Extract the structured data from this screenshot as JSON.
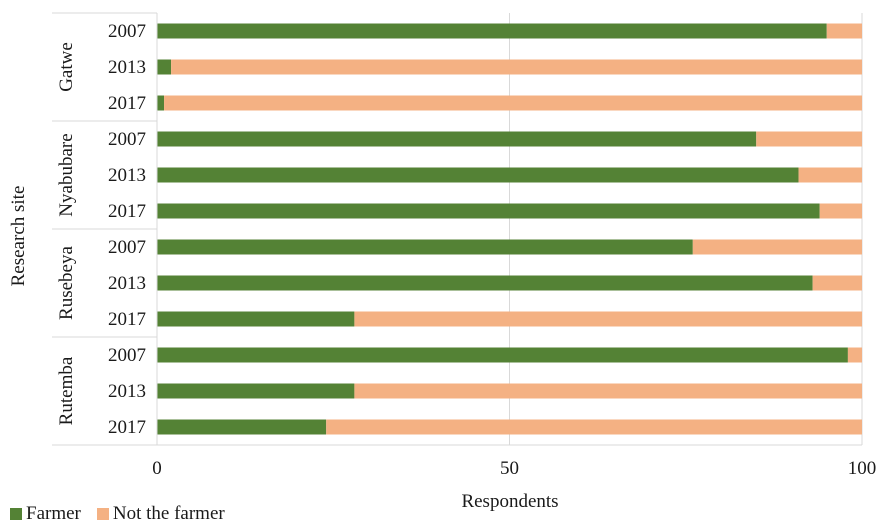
{
  "chart_data": {
    "type": "bar",
    "orientation": "horizontal",
    "stacked": true,
    "xlabel": "Respondents",
    "ylabel": "Research site",
    "xlim": [
      0,
      100
    ],
    "xticks": [
      "0",
      "50",
      "100"
    ],
    "groups": [
      {
        "name": "Gatwe",
        "years": [
          "2007",
          "2013",
          "2017"
        ]
      },
      {
        "name": "Nyabubare",
        "years": [
          "2007",
          "2013",
          "2017"
        ]
      },
      {
        "name": "Rusebeya",
        "years": [
          "2007",
          "2013",
          "2017"
        ]
      },
      {
        "name": "Rutemba",
        "years": [
          "2007",
          "2013",
          "2017"
        ]
      }
    ],
    "series": [
      {
        "name": "Farmer",
        "color": "#548235",
        "values": [
          95,
          2,
          1,
          85,
          91,
          94,
          76,
          93,
          28,
          98,
          28,
          24
        ]
      },
      {
        "name": "Not the farmer",
        "color": "#f4b183",
        "values": [
          5,
          98,
          99,
          15,
          9,
          6,
          24,
          7,
          72,
          2,
          72,
          76
        ]
      }
    ],
    "grid": "vertical",
    "legend_position": "bottom-left"
  }
}
